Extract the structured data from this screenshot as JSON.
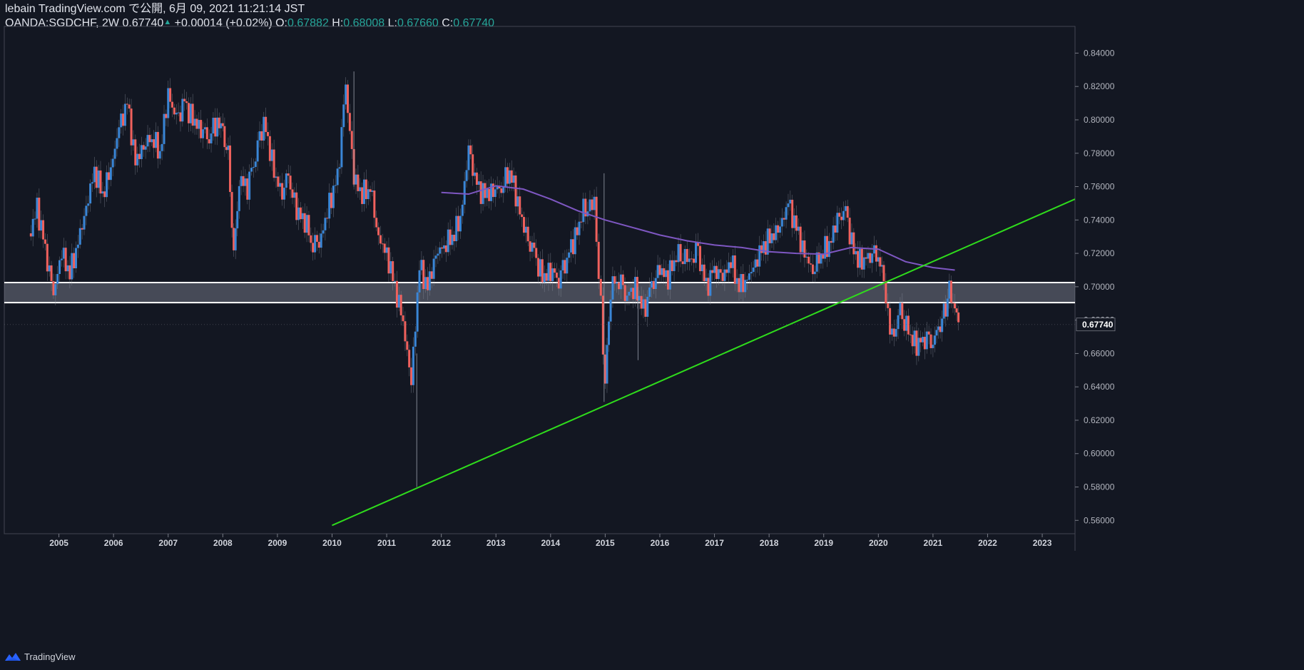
{
  "header": {
    "publish_line": "lebain TradingView.com で公開, 6月 09, 2021 11:21:14 JST",
    "symbol": "OANDA:SGDCHF, 2W",
    "last": "0.67740",
    "change": "+0.00014 (+0.02%)",
    "o_label": "O:",
    "o_value": "0.67882",
    "h_label": "H:",
    "h_value": "0.68008",
    "l_label": "L:",
    "l_value": "0.67660",
    "c_label": "C:",
    "c_value": "0.67740"
  },
  "footer": {
    "brand": "TradingView"
  },
  "colors": {
    "background": "#131722",
    "up": "#3a86d6",
    "down": "#f0615d",
    "ma": "#7e57c2",
    "trendline": "#2fdc1c",
    "zone": "#ffffff",
    "axis": "#787b86"
  },
  "chart_data": {
    "type": "candlestick",
    "title": "OANDA:SGDCHF, 2W",
    "ylim": [
      0.552,
      0.856
    ],
    "xlim": [
      2004.0,
      2023.6
    ],
    "y_ticks": [
      "0.84000",
      "0.82000",
      "0.80000",
      "0.78000",
      "0.76000",
      "0.74000",
      "0.72000",
      "0.70000",
      "0.68000",
      "0.66000",
      "0.64000",
      "0.62000",
      "0.60000",
      "0.58000",
      "0.56000"
    ],
    "x_ticks": [
      "2005",
      "2006",
      "2007",
      "2008",
      "2009",
      "2010",
      "2011",
      "2012",
      "2013",
      "2014",
      "2015",
      "2016",
      "2017",
      "2018",
      "2019",
      "2020",
      "2021",
      "2022",
      "2023"
    ],
    "last_price_label": "0.67740",
    "last_price": 0.6774,
    "closes": [
      [
        2004.45,
        0.729
      ],
      [
        2004.6,
        0.748
      ],
      [
        2004.75,
        0.722
      ],
      [
        2004.9,
        0.695
      ],
      [
        2005.05,
        0.72
      ],
      [
        2005.2,
        0.708
      ],
      [
        2005.35,
        0.727
      ],
      [
        2005.5,
        0.748
      ],
      [
        2005.65,
        0.77
      ],
      [
        2005.8,
        0.755
      ],
      [
        2005.95,
        0.77
      ],
      [
        2006.1,
        0.795
      ],
      [
        2006.25,
        0.81
      ],
      [
        2006.4,
        0.775
      ],
      [
        2006.55,
        0.785
      ],
      [
        2006.7,
        0.79
      ],
      [
        2006.85,
        0.78
      ],
      [
        2007.0,
        0.815
      ],
      [
        2007.15,
        0.8
      ],
      [
        2007.3,
        0.81
      ],
      [
        2007.45,
        0.8
      ],
      [
        2007.6,
        0.795
      ],
      [
        2007.75,
        0.79
      ],
      [
        2007.9,
        0.8
      ],
      [
        2008.0,
        0.79
      ],
      [
        2008.1,
        0.778
      ],
      [
        2008.2,
        0.72
      ],
      [
        2008.3,
        0.765
      ],
      [
        2008.45,
        0.76
      ],
      [
        2008.6,
        0.78
      ],
      [
        2008.75,
        0.8
      ],
      [
        2008.9,
        0.775
      ],
      [
        2009.05,
        0.755
      ],
      [
        2009.2,
        0.765
      ],
      [
        2009.35,
        0.745
      ],
      [
        2009.5,
        0.74
      ],
      [
        2009.65,
        0.725
      ],
      [
        2009.8,
        0.73
      ],
      [
        2009.95,
        0.75
      ],
      [
        2010.1,
        0.765
      ],
      [
        2010.25,
        0.82
      ],
      [
        2010.4,
        0.765
      ],
      [
        2010.55,
        0.755
      ],
      [
        2010.7,
        0.76
      ],
      [
        2010.85,
        0.73
      ],
      [
        2011.0,
        0.72
      ],
      [
        2011.15,
        0.7
      ],
      [
        2011.3,
        0.678
      ],
      [
        2011.45,
        0.642
      ],
      [
        2011.6,
        0.712
      ],
      [
        2011.75,
        0.7
      ],
      [
        2011.9,
        0.72
      ],
      [
        2012.05,
        0.725
      ],
      [
        2012.2,
        0.73
      ],
      [
        2012.35,
        0.74
      ],
      [
        2012.5,
        0.782
      ],
      [
        2012.65,
        0.76
      ],
      [
        2012.8,
        0.755
      ],
      [
        2012.95,
        0.758
      ],
      [
        2013.1,
        0.76
      ],
      [
        2013.25,
        0.77
      ],
      [
        2013.4,
        0.75
      ],
      [
        2013.55,
        0.73
      ],
      [
        2013.7,
        0.72
      ],
      [
        2013.85,
        0.705
      ],
      [
        2014.0,
        0.71
      ],
      [
        2014.15,
        0.705
      ],
      [
        2014.3,
        0.718
      ],
      [
        2014.45,
        0.73
      ],
      [
        2014.6,
        0.745
      ],
      [
        2014.8,
        0.75
      ],
      [
        2015.0,
        0.645
      ],
      [
        2015.1,
        0.7
      ],
      [
        2015.25,
        0.705
      ],
      [
        2015.4,
        0.695
      ],
      [
        2015.55,
        0.7
      ],
      [
        2015.7,
        0.685
      ],
      [
        2015.85,
        0.7
      ],
      [
        2016.0,
        0.71
      ],
      [
        2016.15,
        0.705
      ],
      [
        2016.3,
        0.72
      ],
      [
        2016.5,
        0.715
      ],
      [
        2016.7,
        0.72
      ],
      [
        2016.85,
        0.7
      ],
      [
        2017.0,
        0.71
      ],
      [
        2017.15,
        0.705
      ],
      [
        2017.3,
        0.715
      ],
      [
        2017.45,
        0.7
      ],
      [
        2017.6,
        0.705
      ],
      [
        2017.75,
        0.715
      ],
      [
        2017.9,
        0.725
      ],
      [
        2018.05,
        0.73
      ],
      [
        2018.2,
        0.735
      ],
      [
        2018.35,
        0.75
      ],
      [
        2018.5,
        0.735
      ],
      [
        2018.65,
        0.72
      ],
      [
        2018.8,
        0.71
      ],
      [
        2018.95,
        0.72
      ],
      [
        2019.1,
        0.725
      ],
      [
        2019.25,
        0.74
      ],
      [
        2019.4,
        0.745
      ],
      [
        2019.55,
        0.72
      ],
      [
        2019.7,
        0.715
      ],
      [
        2019.85,
        0.72
      ],
      [
        2020.0,
        0.72
      ],
      [
        2020.1,
        0.7
      ],
      [
        2020.25,
        0.668
      ],
      [
        2020.4,
        0.685
      ],
      [
        2020.55,
        0.672
      ],
      [
        2020.7,
        0.665
      ],
      [
        2020.85,
        0.67
      ],
      [
        2021.0,
        0.668
      ],
      [
        2021.1,
        0.672
      ],
      [
        2021.2,
        0.682
      ],
      [
        2021.3,
        0.698
      ],
      [
        2021.4,
        0.688
      ],
      [
        2021.5,
        0.677
      ]
    ],
    "moving_average": [
      [
        2012.0,
        0.7565
      ],
      [
        2012.5,
        0.7555
      ],
      [
        2013.0,
        0.7605
      ],
      [
        2013.5,
        0.7585
      ],
      [
        2014.0,
        0.7525
      ],
      [
        2014.5,
        0.7455
      ],
      [
        2015.0,
        0.74
      ],
      [
        2015.5,
        0.7355
      ],
      [
        2016.0,
        0.731
      ],
      [
        2016.5,
        0.7275
      ],
      [
        2017.0,
        0.725
      ],
      [
        2017.5,
        0.7235
      ],
      [
        2018.0,
        0.721
      ],
      [
        2018.5,
        0.72
      ],
      [
        2019.0,
        0.7195
      ],
      [
        2019.5,
        0.7235
      ],
      [
        2020.0,
        0.7225
      ],
      [
        2020.5,
        0.715
      ],
      [
        2021.0,
        0.7115
      ],
      [
        2021.4,
        0.71
      ]
    ],
    "trendline": {
      "from": [
        2010.0,
        0.557
      ],
      "to": [
        2023.6,
        0.7525
      ]
    },
    "support_zone": {
      "upper": 0.7025,
      "lower": 0.6905
    }
  }
}
